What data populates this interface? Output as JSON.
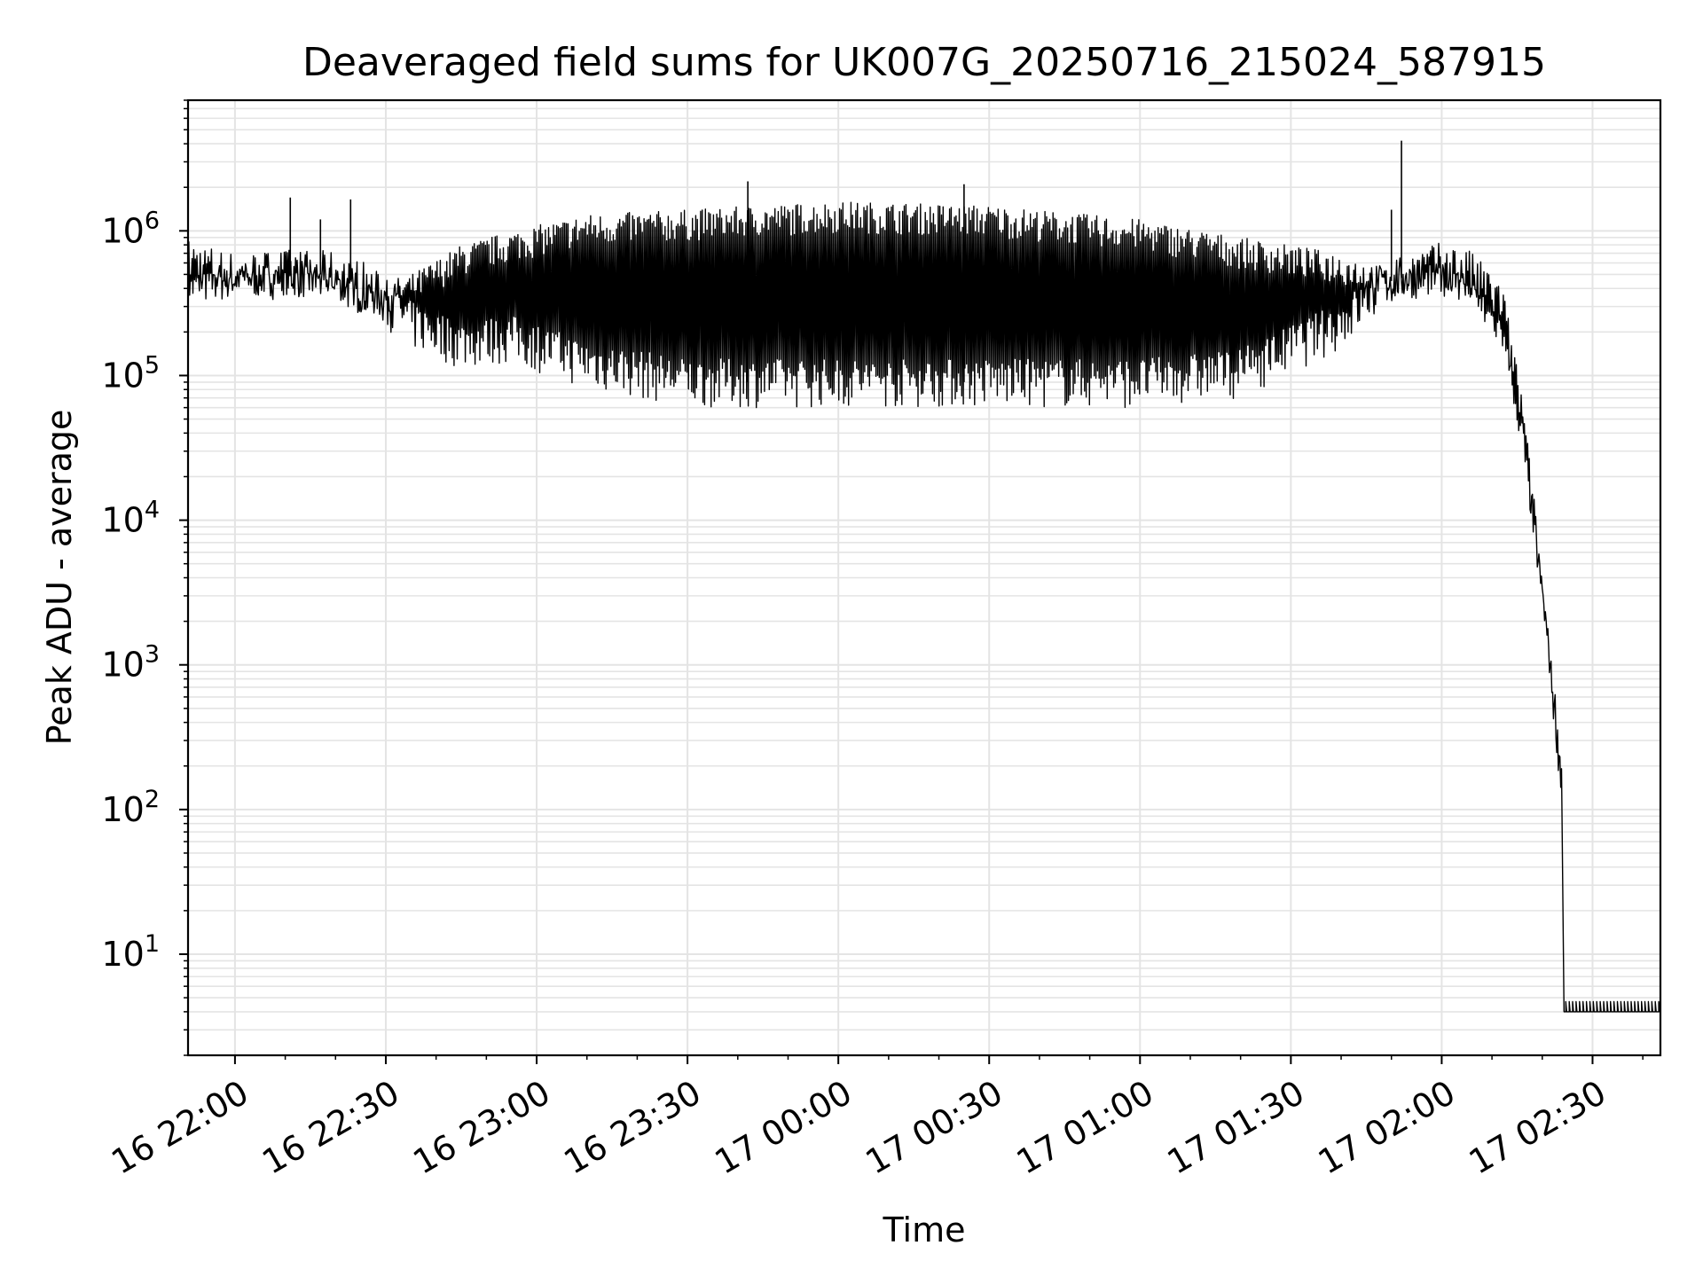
{
  "chart_data": {
    "type": "line",
    "title": "Deaveraged field sums for UK007G_20250716_215024_587915",
    "xlabel": "Time",
    "ylabel": "Peak ADU - average",
    "yscale": "log",
    "ylim": [
      2,
      8000000
    ],
    "xlim": [
      "2025-07-16 21:50:40",
      "2025-07-17 02:43:30"
    ],
    "grid": "major and minor",
    "x_ticks": [
      {
        "t": "2025-07-16 22:00",
        "label": "16 22:00"
      },
      {
        "t": "2025-07-16 22:30",
        "label": "16 22:30"
      },
      {
        "t": "2025-07-16 23:00",
        "label": "16 23:00"
      },
      {
        "t": "2025-07-16 23:30",
        "label": "16 23:30"
      },
      {
        "t": "2025-07-17 00:00",
        "label": "17 00:00"
      },
      {
        "t": "2025-07-17 00:30",
        "label": "17 00:30"
      },
      {
        "t": "2025-07-17 01:00",
        "label": "17 01:00"
      },
      {
        "t": "2025-07-17 01:30",
        "label": "17 01:30"
      },
      {
        "t": "2025-07-17 02:00",
        "label": "17 02:00"
      },
      {
        "t": "2025-07-17 02:30",
        "label": "17 02:30"
      }
    ],
    "y_ticks": [
      {
        "value": 10,
        "base": "10",
        "exp": "1"
      },
      {
        "value": 100,
        "base": "10",
        "exp": "2"
      },
      {
        "value": 1000,
        "base": "10",
        "exp": "3"
      },
      {
        "value": 10000,
        "base": "10",
        "exp": "4"
      },
      {
        "value": 100000,
        "base": "10",
        "exp": "5"
      },
      {
        "value": 1000000,
        "base": "10",
        "exp": "6"
      }
    ],
    "series": [
      {
        "color": "#000000",
        "profile": [
          [
            "2025-07-16 21:50:40",
            400000,
            500000
          ],
          [
            "2025-07-16 22:00",
            320000,
            560000
          ],
          [
            "2025-07-16 22:10",
            340000,
            600000
          ],
          [
            "2025-07-16 22:20",
            330000,
            520000
          ],
          [
            "2025-07-16 22:26",
            280000,
            420000
          ],
          [
            "2025-07-16 22:35",
            150000,
            500000
          ],
          [
            "2025-07-16 22:45",
            110000,
            800000
          ],
          [
            "2025-07-16 22:55",
            120000,
            1000000
          ],
          [
            "2025-07-16 23:10",
            80000,
            1300000
          ],
          [
            "2025-07-16 23:30",
            60000,
            1400000
          ],
          [
            "2025-07-17 00:00",
            60000,
            1600000
          ],
          [
            "2025-07-17 00:30",
            60000,
            1500000
          ],
          [
            "2025-07-17 01:00",
            60000,
            1200000
          ],
          [
            "2025-07-17 01:20",
            70000,
            900000
          ],
          [
            "2025-07-17 01:40",
            150000,
            700000
          ],
          [
            "2025-07-17 01:50",
            300000,
            550000
          ],
          [
            "2025-07-17 02:00",
            380000,
            600000
          ],
          [
            "2025-07-17 02:05",
            350000,
            500000
          ],
          [
            "2025-07-17 02:12",
            200000,
            250000
          ],
          [
            "2025-07-17 02:16",
            35000,
            50000
          ],
          [
            "2025-07-17 02:21",
            1000,
            2000
          ],
          [
            "2025-07-17 02:24",
            100,
            170
          ]
        ],
        "floor": {
          "from": "2025-07-17 02:24:20",
          "to": "2025-07-17 02:43:30",
          "low": 4,
          "high": 4.7
        },
        "spikes": [
          [
            "2025-07-16 22:11",
            1700000
          ],
          [
            "2025-07-16 22:17",
            1200000
          ],
          [
            "2025-07-16 22:23",
            1650000
          ],
          [
            "2025-07-16 23:42",
            2200000
          ],
          [
            "2025-07-17 00:25",
            2100000
          ],
          [
            "2025-07-17 01:50",
            1400000
          ],
          [
            "2025-07-17 01:52",
            4200000
          ]
        ]
      }
    ]
  }
}
